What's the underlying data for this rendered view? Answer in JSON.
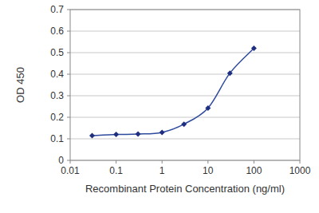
{
  "chart_data": {
    "type": "line",
    "x_label": "Recombinant Protein Concentration (ng/ml)",
    "y_label": "OD 450",
    "x": [
      0.03,
      0.1,
      0.3,
      1,
      3,
      10,
      30,
      100
    ],
    "series": [
      {
        "name": null,
        "color": "#2e4a9e",
        "marker": "diamond",
        "values": [
          0.115,
          0.12,
          0.122,
          0.13,
          0.168,
          0.243,
          0.405,
          0.52
        ]
      }
    ],
    "log": "x",
    "xlim": [
      0.01,
      1000
    ],
    "xticks": [
      0.01,
      0.1,
      1,
      10,
      100,
      1000
    ],
    "ylim": [
      0,
      0.7
    ],
    "yticks": [
      0,
      0.1,
      0.2,
      0.3,
      0.4,
      0.5,
      0.6,
      0.7
    ],
    "grid": true
  }
}
